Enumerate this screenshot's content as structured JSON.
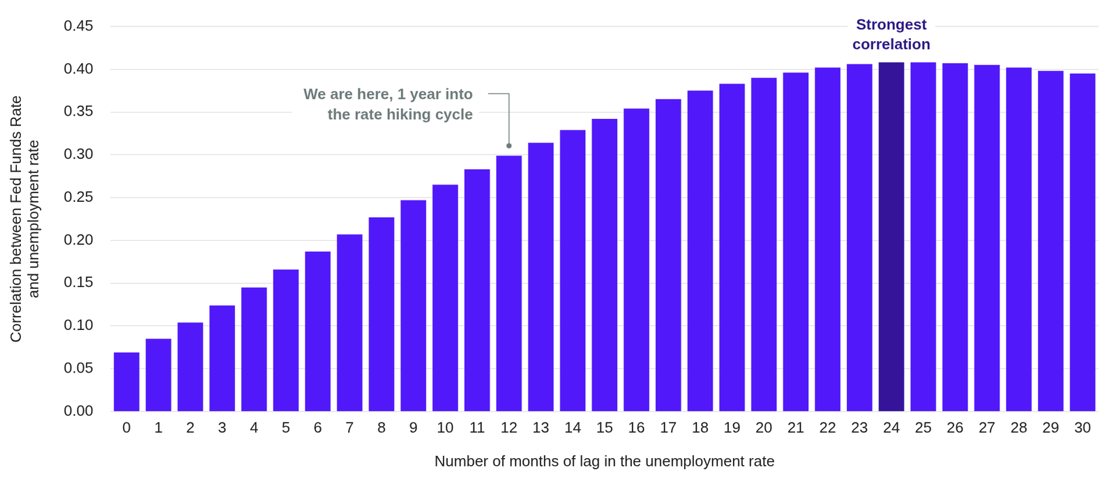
{
  "chart_data": {
    "type": "bar",
    "x_label": "Number of months of lag in the unemployment rate",
    "y_label": [
      "Correlation between Fed Funds Rate",
      "and unemployment rate"
    ],
    "categories": [
      "0",
      "1",
      "2",
      "3",
      "4",
      "5",
      "6",
      "7",
      "8",
      "9",
      "10",
      "11",
      "12",
      "13",
      "14",
      "15",
      "16",
      "17",
      "18",
      "19",
      "20",
      "21",
      "22",
      "23",
      "24",
      "25",
      "26",
      "27",
      "28",
      "29",
      "30"
    ],
    "values": [
      0.069,
      0.085,
      0.104,
      0.124,
      0.145,
      0.166,
      0.187,
      0.207,
      0.227,
      0.247,
      0.265,
      0.283,
      0.299,
      0.314,
      0.329,
      0.342,
      0.354,
      0.365,
      0.375,
      0.383,
      0.39,
      0.396,
      0.402,
      0.406,
      0.408,
      0.408,
      0.407,
      0.405,
      0.402,
      0.398,
      0.395
    ],
    "colors": [
      "#5119FA",
      "#5119FA",
      "#5119FA",
      "#5119FA",
      "#5119FA",
      "#5119FA",
      "#5119FA",
      "#5119FA",
      "#5119FA",
      "#5119FA",
      "#5119FA",
      "#5119FA",
      "#5119FA",
      "#5119FA",
      "#5119FA",
      "#5119FA",
      "#5119FA",
      "#5119FA",
      "#5119FA",
      "#5119FA",
      "#5119FA",
      "#5119FA",
      "#5119FA",
      "#5119FA",
      "#35149A",
      "#5119FA",
      "#5119FA",
      "#5119FA",
      "#5119FA",
      "#5119FA",
      "#5119FA"
    ],
    "ylim": [
      0,
      0.45
    ],
    "yticks": [
      {
        "value": 0,
        "label": "0.00"
      },
      {
        "value": 0.05,
        "label": "0.05"
      },
      {
        "value": 0.1,
        "label": "0.10"
      },
      {
        "value": 0.15,
        "label": "0.15"
      },
      {
        "value": 0.2,
        "label": "0.20"
      },
      {
        "value": 0.25,
        "label": "0.25"
      },
      {
        "value": 0.3,
        "label": "0.30"
      },
      {
        "value": 0.35,
        "label": "0.35"
      },
      {
        "value": 0.4,
        "label": "0.40"
      },
      {
        "value": 0.45,
        "label": "0.45"
      }
    ],
    "grid": true,
    "annotations": [
      {
        "text": [
          "We are here, 1 year into",
          "the rate hiking cycle"
        ],
        "x": 12
      },
      {
        "text": [
          "Strongest",
          "correlation"
        ],
        "x": 24
      }
    ]
  }
}
